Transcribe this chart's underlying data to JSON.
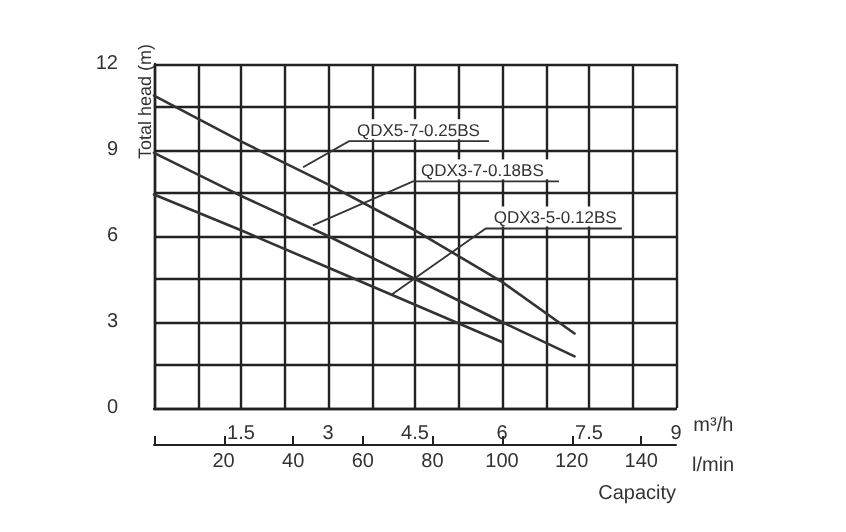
{
  "chart_data": {
    "type": "line",
    "ylabel": "Total head (m)",
    "xlabel": "m³/h",
    "x2label": "l/min",
    "xlim": [
      0,
      9
    ],
    "xticks": [
      {
        "value": 0,
        "label": null
      },
      {
        "value": 0.75,
        "label": null
      },
      1.5,
      {
        "value": 2.25,
        "label": null
      },
      3,
      {
        "value": 3.75,
        "label": null
      },
      4.5,
      {
        "value": 5.25,
        "label": null
      },
      6,
      {
        "value": 6.75,
        "label": null
      },
      7.5,
      {
        "value": 8.25,
        "label": null
      },
      9
    ],
    "ylim": [
      0,
      12
    ],
    "yticks": [
      0,
      {
        "value": 1.5,
        "label": null
      },
      3,
      {
        "value": 4.5,
        "label": null
      },
      6,
      {
        "value": 7.5,
        "label": null
      },
      9,
      {
        "value": 10.5,
        "label": null
      },
      12
    ],
    "x2lim": [
      0,
      150
    ],
    "x2ticks": [
      {
        "value": 0,
        "label": null
      },
      20,
      40,
      60,
      80,
      100,
      120,
      140
    ],
    "series": [
      {
        "color": "#333333",
        "x": [
          0,
          1.5,
          3,
          4.5,
          6,
          7.25
        ],
        "values": [
          10.9,
          9.3,
          7.8,
          6.2,
          4.4,
          2.6
        ]
      },
      {
        "color": "#333333",
        "x": [
          0,
          1.5,
          3,
          4.5,
          6,
          7.25
        ],
        "values": [
          8.9,
          7.4,
          6.0,
          4.5,
          3.0,
          1.8
        ]
      },
      {
        "color": "#333333",
        "x": [
          0,
          1.5,
          3,
          4.5,
          6
        ],
        "values": [
          7.45,
          6.2,
          4.9,
          3.6,
          2.3
        ]
      }
    ],
    "annotations": [
      {
        "text": "QDX5-7-0.25BS",
        "x": 2.57,
        "y": 8.4
      },
      {
        "text": "QDX3-7-0.18BS",
        "x": 2.74,
        "y": 6.37
      },
      {
        "text": "QDX3-5-0.12BS",
        "x": 4.1,
        "y": 3.96
      },
      "Capacity"
    ],
    "grid": true,
    "marker": "none",
    "line_style": "solid"
  }
}
